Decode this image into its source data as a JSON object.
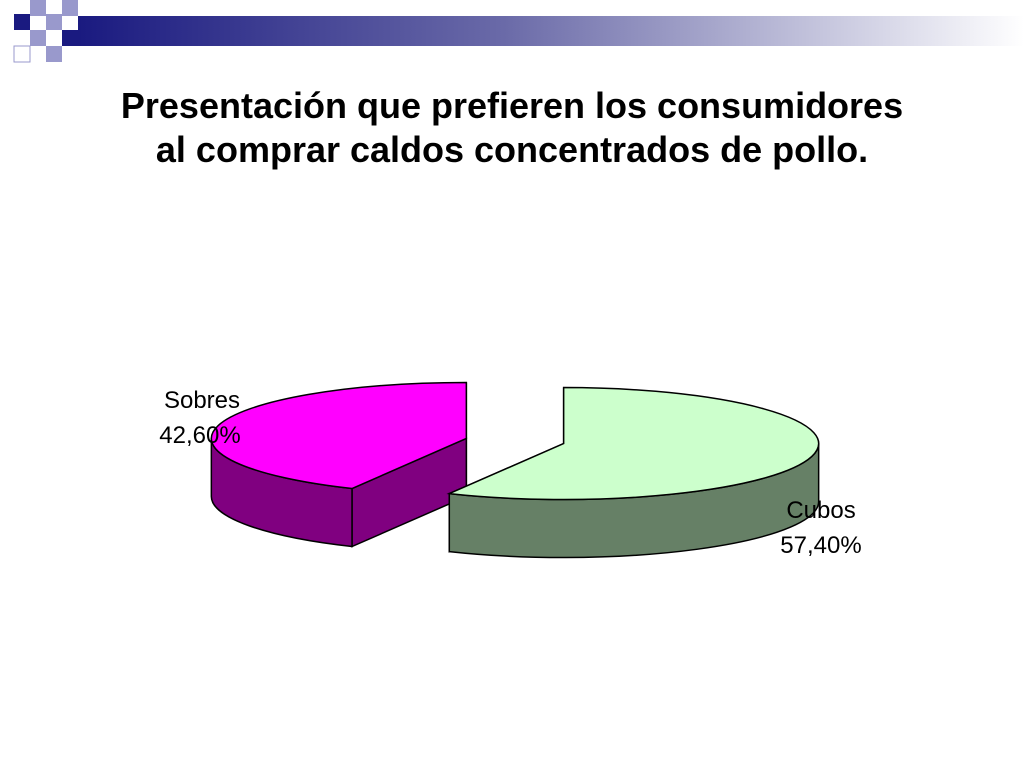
{
  "slide": {
    "title_line1": "Presentación que prefieren los consumidores",
    "title_line2": "al comprar caldos concentrados de pollo."
  },
  "colors": {
    "sobres_top": "#ff00ff",
    "sobres_side": "#800080",
    "cubos_top": "#ccffcc",
    "cubos_side": "#668066",
    "outline": "#000000",
    "deco_dark": "#1a1a80",
    "deco_light": "#9999cc"
  },
  "chart_data": {
    "type": "pie",
    "title": "Presentación que prefieren los consumidores al comprar caldos concentrados de pollo.",
    "style": "3d-exploded",
    "legend": "none",
    "slices": [
      {
        "name": "Sobres",
        "value": 42.6,
        "label": "42,60%"
      },
      {
        "name": "Cubos",
        "value": 57.4,
        "label": "57,40%"
      }
    ]
  }
}
